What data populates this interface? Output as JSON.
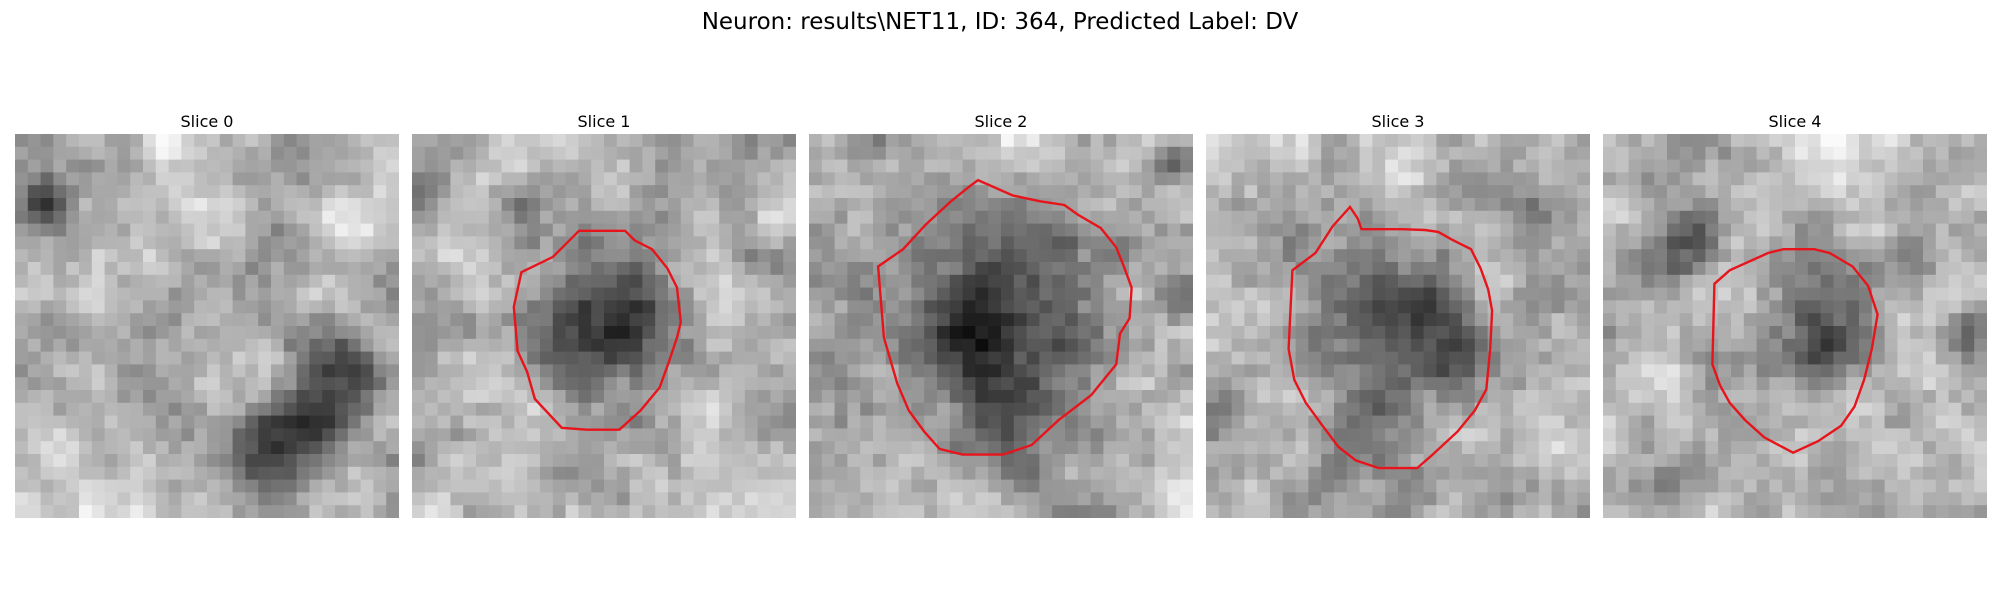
{
  "figure": {
    "title": "Neuron: results\\NET11, ID: 364, Predicted Label: DV"
  },
  "panels": [
    {
      "title": "Slice 0"
    },
    {
      "title": "Slice 1"
    },
    {
      "title": "Slice 2"
    },
    {
      "title": "Slice 3"
    },
    {
      "title": "Slice 4"
    }
  ],
  "colors": {
    "contour": "#e8141c",
    "image_colormap": "grayscale"
  }
}
